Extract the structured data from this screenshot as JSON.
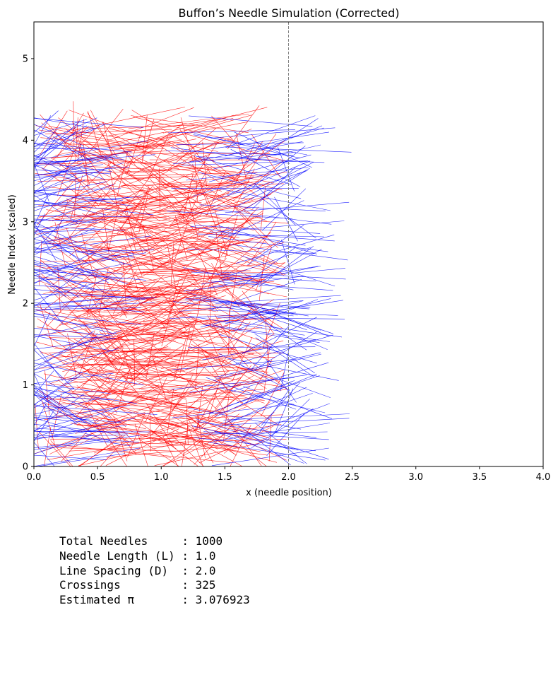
{
  "chart_data": {
    "type": "line",
    "title": "Buffon’s Needle Simulation (Corrected)",
    "xlabel": "x (needle position)",
    "ylabel": "Needle Index (scaled)",
    "xlim": [
      0,
      4
    ],
    "ylim": [
      0,
      5.45
    ],
    "xticks": [
      "0.0",
      "0.5",
      "1.0",
      "1.5",
      "2.0",
      "2.5",
      "3.0",
      "3.5",
      "4.0"
    ],
    "yticks": [
      "0",
      "1",
      "2",
      "3",
      "4",
      "5"
    ],
    "grid": false,
    "reference_lines": [
      {
        "axis": "x",
        "value": 2.0,
        "style": "dashed",
        "color": "#808080"
      }
    ],
    "series": [
      {
        "role": "crossing",
        "color": "#0000ff",
        "count": 325
      },
      {
        "role": "non-crossing",
        "color": "#ff0000",
        "count": 675
      }
    ],
    "needle_count": 1000,
    "needle_length": 1.0
  },
  "stats": {
    "lines": [
      "Total Needles     : 1000",
      "Needle Length (L) : 1.0",
      "Line Spacing (D)  : 2.0",
      "Crossings         : 325",
      "Estimated π       : 3.076923"
    ]
  }
}
